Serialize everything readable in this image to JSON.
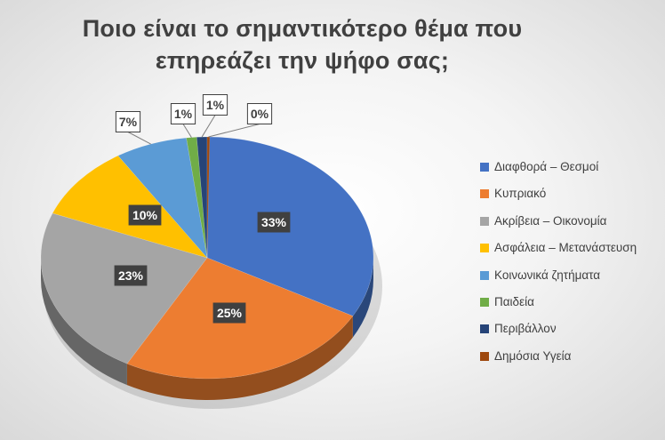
{
  "chart_data": {
    "type": "pie",
    "title": "Ποιο είναι το σημαντικότερο θέμα που επηρεάζει την ψήφο σας;",
    "title_lines": [
      "Ποιο είναι το σημαντικότερο θέμα που",
      "επηρεάζει την ψήφο σας;"
    ],
    "categories": [
      "Διαφθορά – Θεσμοί",
      "Κυπριακό",
      "Ακρίβεια – Οικονομία",
      "Ασφάλεια – Μετανάστευση",
      "Κοινωνικά ζητήματα",
      "Παιδεία",
      "Περιβάλλον",
      "Δημόσια Υγεία"
    ],
    "values": [
      33,
      25,
      23,
      10,
      7,
      1,
      1,
      0
    ],
    "labels": [
      "33%",
      "25%",
      "23%",
      "10%",
      "7%",
      "1%",
      "1%",
      "0%"
    ],
    "colors": [
      "#4472C4",
      "#ED7D31",
      "#A5A5A5",
      "#FFC000",
      "#5B9BD5",
      "#70AD47",
      "#264478",
      "#9E480E"
    ],
    "legend_position": "right",
    "style": "3d"
  }
}
